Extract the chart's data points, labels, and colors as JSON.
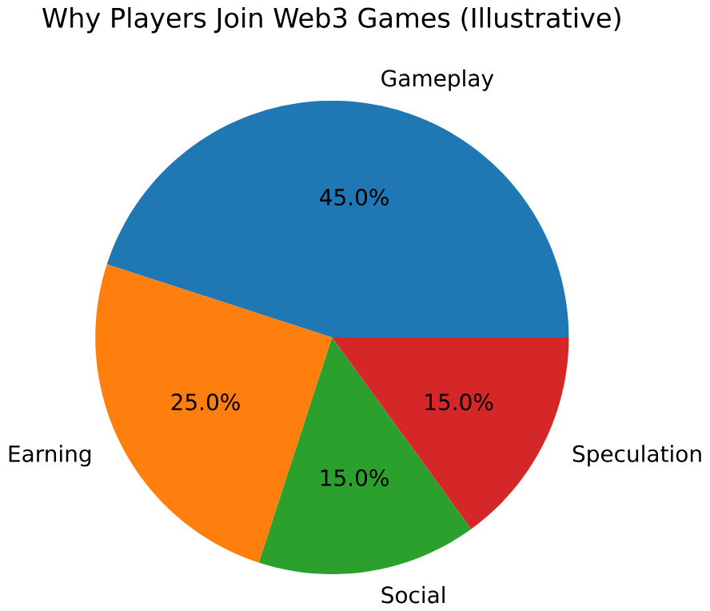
{
  "chart_data": {
    "type": "pie",
    "title": "Why Players Join Web3 Games (Illustrative)",
    "categories": [
      "Gameplay",
      "Earning",
      "Social",
      "Speculation"
    ],
    "values": [
      45,
      25,
      15,
      15
    ],
    "value_labels": [
      "45.0%",
      "25.0%",
      "15.0%",
      "15.0%"
    ],
    "colors": [
      "#1f77b4",
      "#ff7f0e",
      "#2ca02c",
      "#d62728"
    ]
  }
}
